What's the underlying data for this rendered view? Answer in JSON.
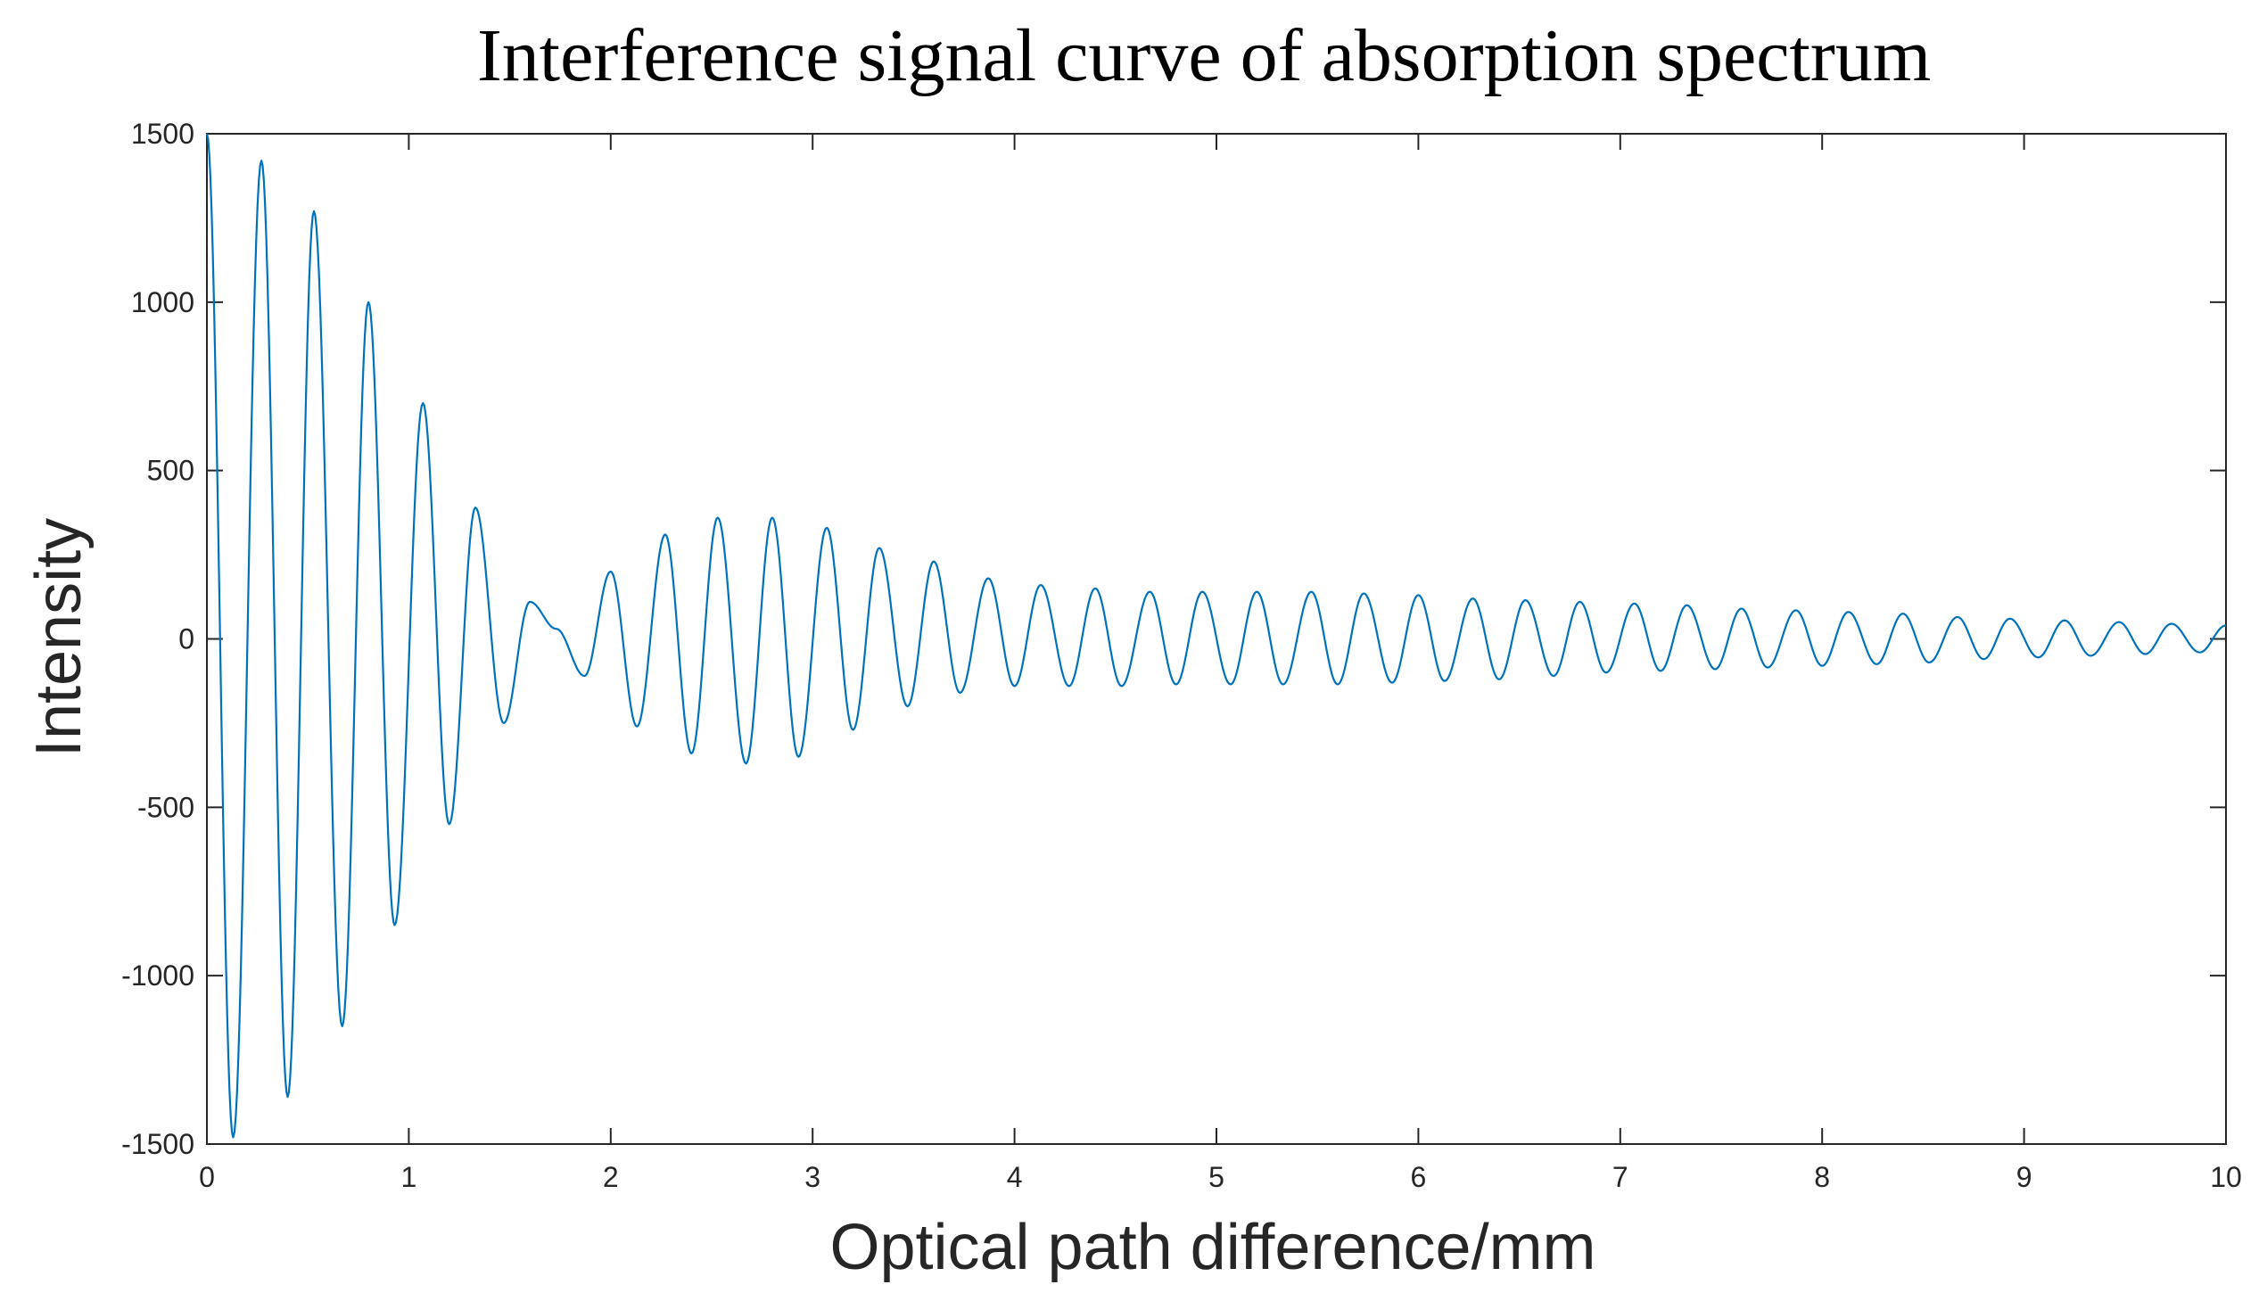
{
  "chart_data": {
    "type": "line",
    "title": "Interference signal curve of absorption spectrum",
    "xlabel": "Optical path difference/mm",
    "ylabel": "Intensity",
    "xlim": [
      0,
      10
    ],
    "ylim": [
      -1500,
      1500
    ],
    "xticks": [
      0,
      1,
      2,
      3,
      4,
      5,
      6,
      7,
      8,
      9,
      10
    ],
    "yticks": [
      -1500,
      -1000,
      -500,
      0,
      500,
      1000,
      1500
    ],
    "grid": false,
    "line_color": "#0072BD",
    "series": [
      {
        "name": "Interference signal",
        "x": [
          0,
          0.13,
          0.27,
          0.4,
          0.53,
          0.67,
          0.8,
          0.93,
          1.07,
          1.2,
          1.33,
          1.47,
          1.6,
          1.73,
          1.87,
          2.0,
          2.13,
          2.27,
          2.4,
          2.53,
          2.67,
          2.8,
          2.93,
          3.07,
          3.2,
          3.33,
          3.47,
          3.6,
          3.73,
          3.87,
          4.0,
          4.13,
          4.27,
          4.4,
          4.53,
          4.67,
          4.8,
          4.93,
          5.07,
          5.2,
          5.33,
          5.47,
          5.6,
          5.73,
          5.87,
          6.0,
          6.13,
          6.27,
          6.4,
          6.53,
          6.67,
          6.8,
          6.93,
          7.07,
          7.2,
          7.33,
          7.47,
          7.6,
          7.73,
          7.87,
          8.0,
          8.13,
          8.27,
          8.4,
          8.53,
          8.67,
          8.8,
          8.93,
          9.07,
          9.2,
          9.33,
          9.47,
          9.6,
          9.73,
          9.87,
          10.0
        ],
        "y": [
          1500,
          -1480,
          1420,
          -1360,
          1270,
          -1150,
          1000,
          -850,
          700,
          -550,
          390,
          -250,
          110,
          30,
          -110,
          200,
          -260,
          310,
          -340,
          360,
          -370,
          360,
          -350,
          330,
          -270,
          270,
          -200,
          230,
          -160,
          180,
          -140,
          160,
          -140,
          150,
          -140,
          140,
          -135,
          140,
          -135,
          140,
          -135,
          140,
          -135,
          135,
          -130,
          130,
          -125,
          120,
          -120,
          115,
          -110,
          110,
          -100,
          105,
          -95,
          100,
          -90,
          90,
          -85,
          85,
          -80,
          80,
          -75,
          75,
          -70,
          65,
          -60,
          60,
          -55,
          55,
          -50,
          50,
          -45,
          45,
          -40,
          40
        ]
      }
    ]
  }
}
